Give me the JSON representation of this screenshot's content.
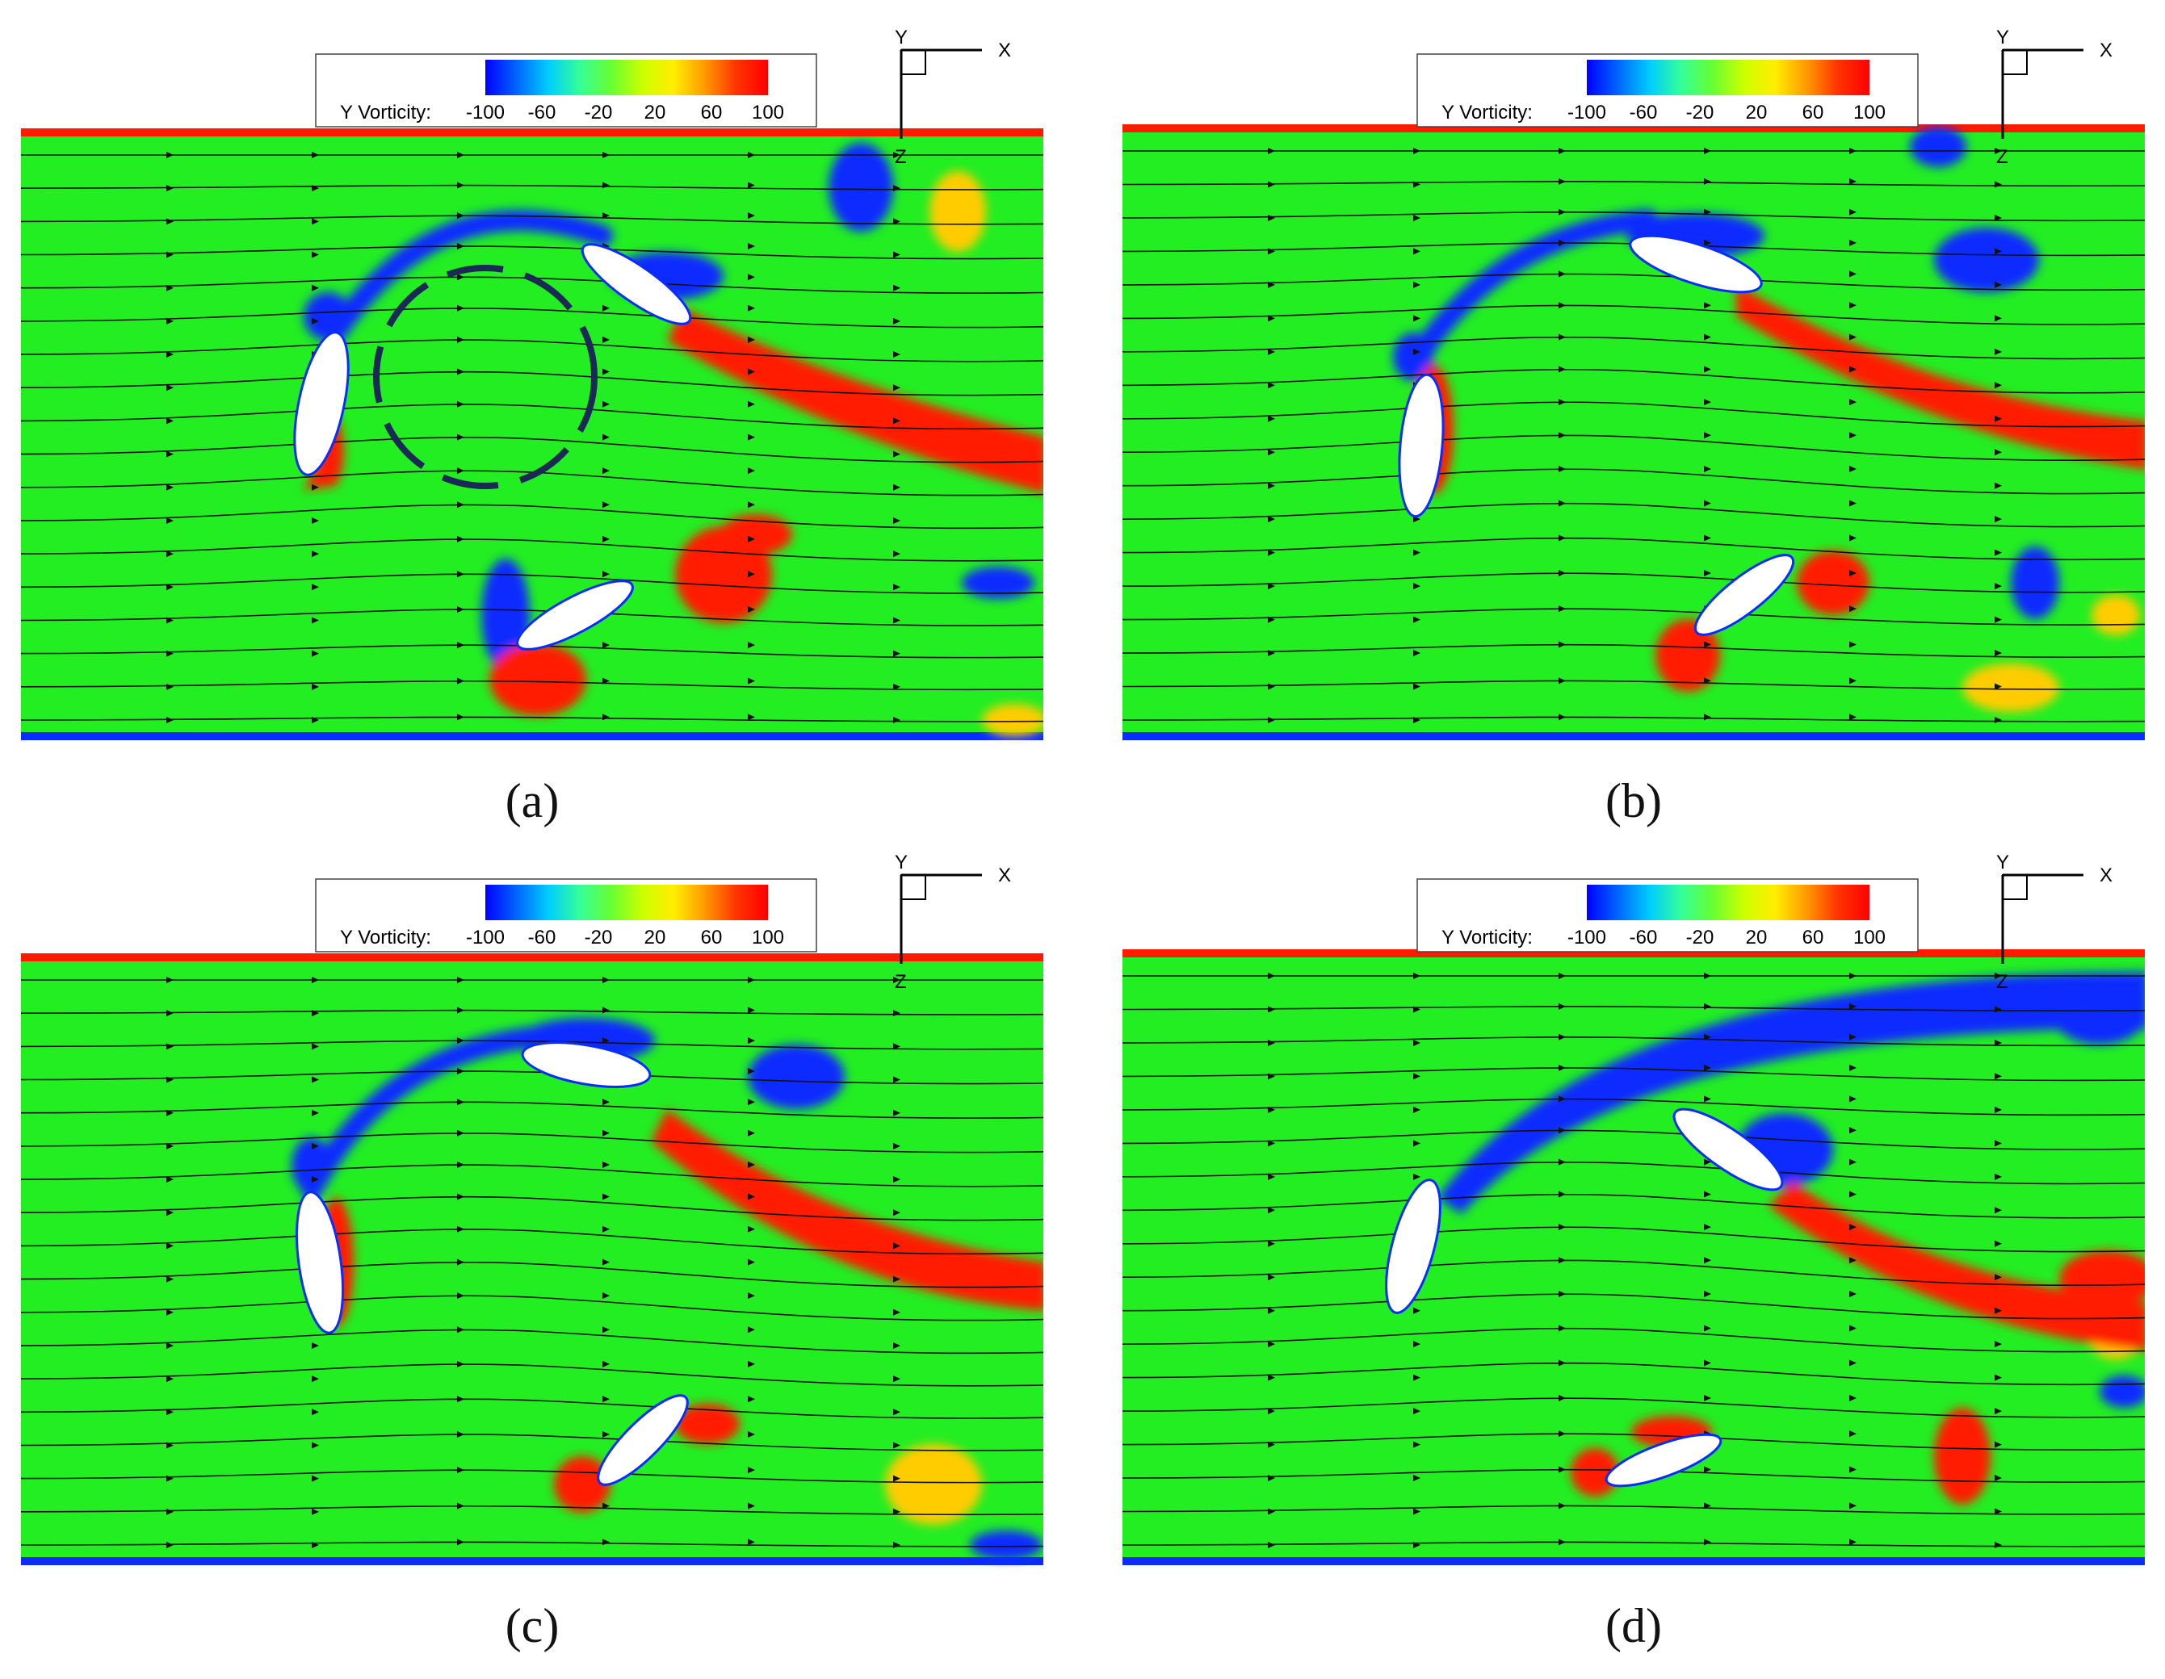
{
  "figure": {
    "colorbar": {
      "title": "Y Vorticity:",
      "ticks": [
        "-100",
        "-60",
        "-20",
        "20",
        "60",
        "100"
      ],
      "colors": [
        "#0000ff",
        "#0066ff",
        "#00ccff",
        "#33ff99",
        "#66ff33",
        "#ccff00",
        "#ffee00",
        "#ff9900",
        "#ff3300",
        "#ff0000"
      ]
    },
    "axes": {
      "x": "X",
      "y": "Y",
      "z": "Z"
    },
    "colors": {
      "background_field": "#22ee22",
      "positive_vortex": "#ff1a00",
      "negative_vortex": "#0a2cff",
      "cyan": "#33ffcc",
      "airfoil": "#ffffff",
      "streamline": "#111111",
      "highlight_circle": "#1a2a55"
    },
    "panels": [
      {
        "id": "a",
        "caption": "(a)"
      },
      {
        "id": "b",
        "caption": "(b)"
      },
      {
        "id": "c",
        "caption": "(c)"
      },
      {
        "id": "d",
        "caption": "(d)"
      }
    ]
  }
}
